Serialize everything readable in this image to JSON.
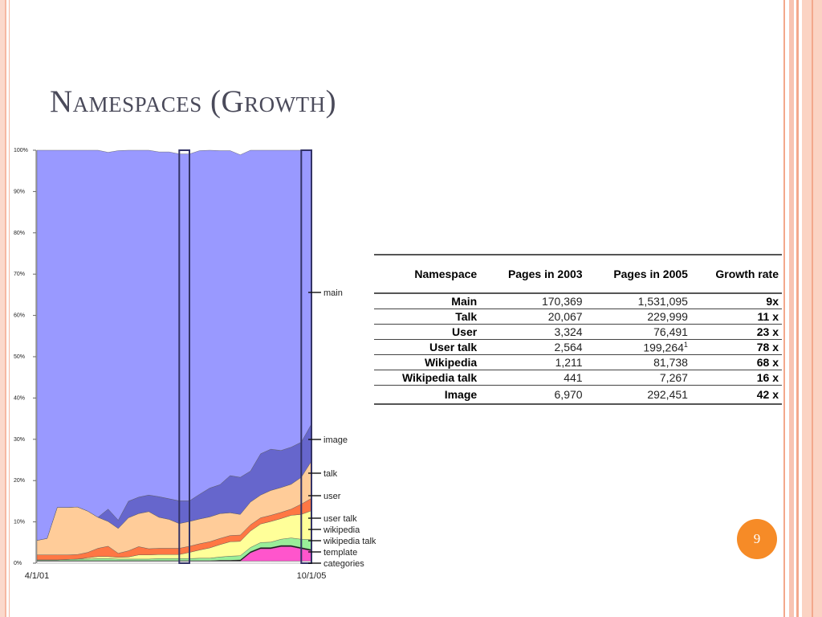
{
  "slide": {
    "title": "Namespaces (Growth)",
    "page_number": "9",
    "accent_color": "#f68b27"
  },
  "chart_data": {
    "type": "area",
    "stacked": true,
    "percent": true,
    "x": [
      "4/1/01",
      "6/1/01",
      "8/1/01",
      "10/1/01",
      "12/1/01",
      "2/1/02",
      "4/1/02",
      "6/1/02",
      "8/1/02",
      "10/1/02",
      "12/1/02",
      "2/1/03",
      "4/1/03",
      "6/1/03",
      "8/1/03",
      "10/1/03",
      "12/1/03",
      "2/1/04",
      "4/1/04",
      "6/1/04",
      "8/1/04",
      "10/1/04",
      "12/1/04",
      "2/1/05",
      "4/1/05",
      "6/1/05",
      "8/1/05",
      "10/1/05"
    ],
    "x_tick_labels": [
      "4/1/01",
      "10/1/05"
    ],
    "y_tick_labels": [
      "0%",
      "10%",
      "20%",
      "30%",
      "40%",
      "50%",
      "60%",
      "70%",
      "80%",
      "90%",
      "100%"
    ],
    "ylim": [
      0,
      100
    ],
    "highlight_ranges": [
      [
        "8/1/03",
        "10/1/03"
      ],
      [
        "8/1/05",
        "10/1/05"
      ]
    ],
    "series": [
      {
        "name": "categories",
        "color": "#ffffff",
        "values": [
          0.5,
          0.5,
          0.5,
          0.5,
          0.5,
          0.5,
          0.5,
          0.5,
          0.5,
          0.5,
          0.5,
          0.5,
          0.5,
          0.5,
          0.5,
          0.5,
          0.5,
          0.5,
          0.5,
          0.5,
          0.5,
          0.5,
          0.5,
          0.5,
          0.5,
          0.5,
          0.5,
          0.5
        ]
      },
      {
        "name": "template",
        "color": "#ff55cc",
        "values": [
          0,
          0,
          0,
          0,
          0,
          0,
          0,
          0,
          0,
          0,
          0,
          0,
          0,
          0,
          0,
          0,
          0,
          0,
          0,
          0,
          0,
          2,
          3,
          3,
          3.5,
          3.5,
          3,
          2.5
        ]
      },
      {
        "name": "wikipedia talk",
        "color": "#111111",
        "values": [
          0.1,
          0.1,
          0.1,
          0.1,
          0.1,
          0.1,
          0.1,
          0.1,
          0.1,
          0.1,
          0.1,
          0.1,
          0.1,
          0.1,
          0.1,
          0.1,
          0.1,
          0.1,
          0.2,
          0.2,
          0.3,
          0.3,
          0.3,
          0.3,
          0.3,
          0.3,
          0.3,
          0.3
        ]
      },
      {
        "name": "wikipedia",
        "color": "#99ee99",
        "values": [
          0.2,
          0.2,
          0.2,
          0.3,
          0.4,
          0.4,
          0.5,
          0.5,
          0.4,
          0.4,
          0.4,
          0.4,
          0.5,
          0.5,
          0.5,
          0.5,
          0.6,
          0.6,
          0.8,
          1,
          1,
          1,
          1.2,
          1.3,
          1.5,
          1.8,
          2,
          2.4
        ]
      },
      {
        "name": "user talk",
        "color": "#ffff99",
        "values": [
          0,
          0,
          0,
          0,
          0,
          0.3,
          0.5,
          0.5,
          0.4,
          0.5,
          1,
          1,
          1,
          1,
          1,
          1.5,
          2,
          2.5,
          3,
          3.5,
          3.5,
          4,
          4.5,
          5,
          5,
          5.5,
          6,
          7
        ]
      },
      {
        "name": "user",
        "color": "#ff7744",
        "values": [
          1.2,
          1.2,
          1.2,
          1.1,
          1.1,
          1.3,
          2,
          2.5,
          1,
          1.5,
          2,
          1.5,
          1.5,
          1.5,
          1.5,
          1.5,
          1.5,
          1.5,
          1.5,
          1.5,
          1.5,
          1.5,
          1.5,
          1.5,
          1.5,
          1.5,
          2.5,
          3
        ]
      },
      {
        "name": "talk",
        "color": "#ffcc99",
        "values": [
          3.5,
          4,
          11.5,
          11.5,
          11.5,
          10,
          7.5,
          6,
          6,
          8,
          8,
          9,
          7.5,
          7,
          6,
          6,
          6,
          6,
          6,
          5.5,
          5,
          5.5,
          5.5,
          6,
          6,
          6,
          6.5,
          9
        ]
      },
      {
        "name": "image",
        "color": "#6666cc",
        "values": [
          0,
          0,
          0,
          0,
          0,
          0,
          0,
          3,
          2,
          4,
          4,
          4,
          5,
          5,
          5.5,
          5,
          6,
          7,
          7,
          9,
          9,
          7.5,
          10,
          10,
          9,
          9,
          8.5,
          9
        ]
      },
      {
        "name": "main",
        "color": "#9999ff",
        "values": [
          94.5,
          94,
          86.5,
          86.5,
          86.5,
          87.4,
          88.9,
          86.4,
          89.5,
          85,
          84,
          83.5,
          83.5,
          84,
          84,
          84,
          83.2,
          81.8,
          80.9,
          78.7,
          78.1,
          77.7,
          73.5,
          72.6,
          72.7,
          72.9,
          71.2,
          66.3
        ]
      }
    ]
  },
  "table": {
    "headers": [
      "Namespace",
      "Pages in 2003",
      "Pages in 2005",
      "Growth rate"
    ],
    "rows": [
      {
        "namespace": "Main",
        "p2003": "170,369",
        "p2005": "1,531,095",
        "growth": "9x"
      },
      {
        "namespace": "Talk",
        "p2003": "20,067",
        "p2005": "229,999",
        "growth": "11 x"
      },
      {
        "namespace": "User",
        "p2003": "3,324",
        "p2005": "76,491",
        "growth": "23 x"
      },
      {
        "namespace": "User talk",
        "p2003": "2,564",
        "p2005": "199,264",
        "p2005_sup": "1",
        "growth": "78 x"
      },
      {
        "namespace": "Wikipedia",
        "p2003": "1,211",
        "p2005": "81,738",
        "growth": "68 x"
      },
      {
        "namespace": "Wikipedia talk",
        "p2003": "441",
        "p2005": "7,267",
        "growth": "16 x"
      },
      {
        "namespace": "Image",
        "p2003": "6,970",
        "p2005": "292,451",
        "growth": "42 x"
      }
    ]
  }
}
